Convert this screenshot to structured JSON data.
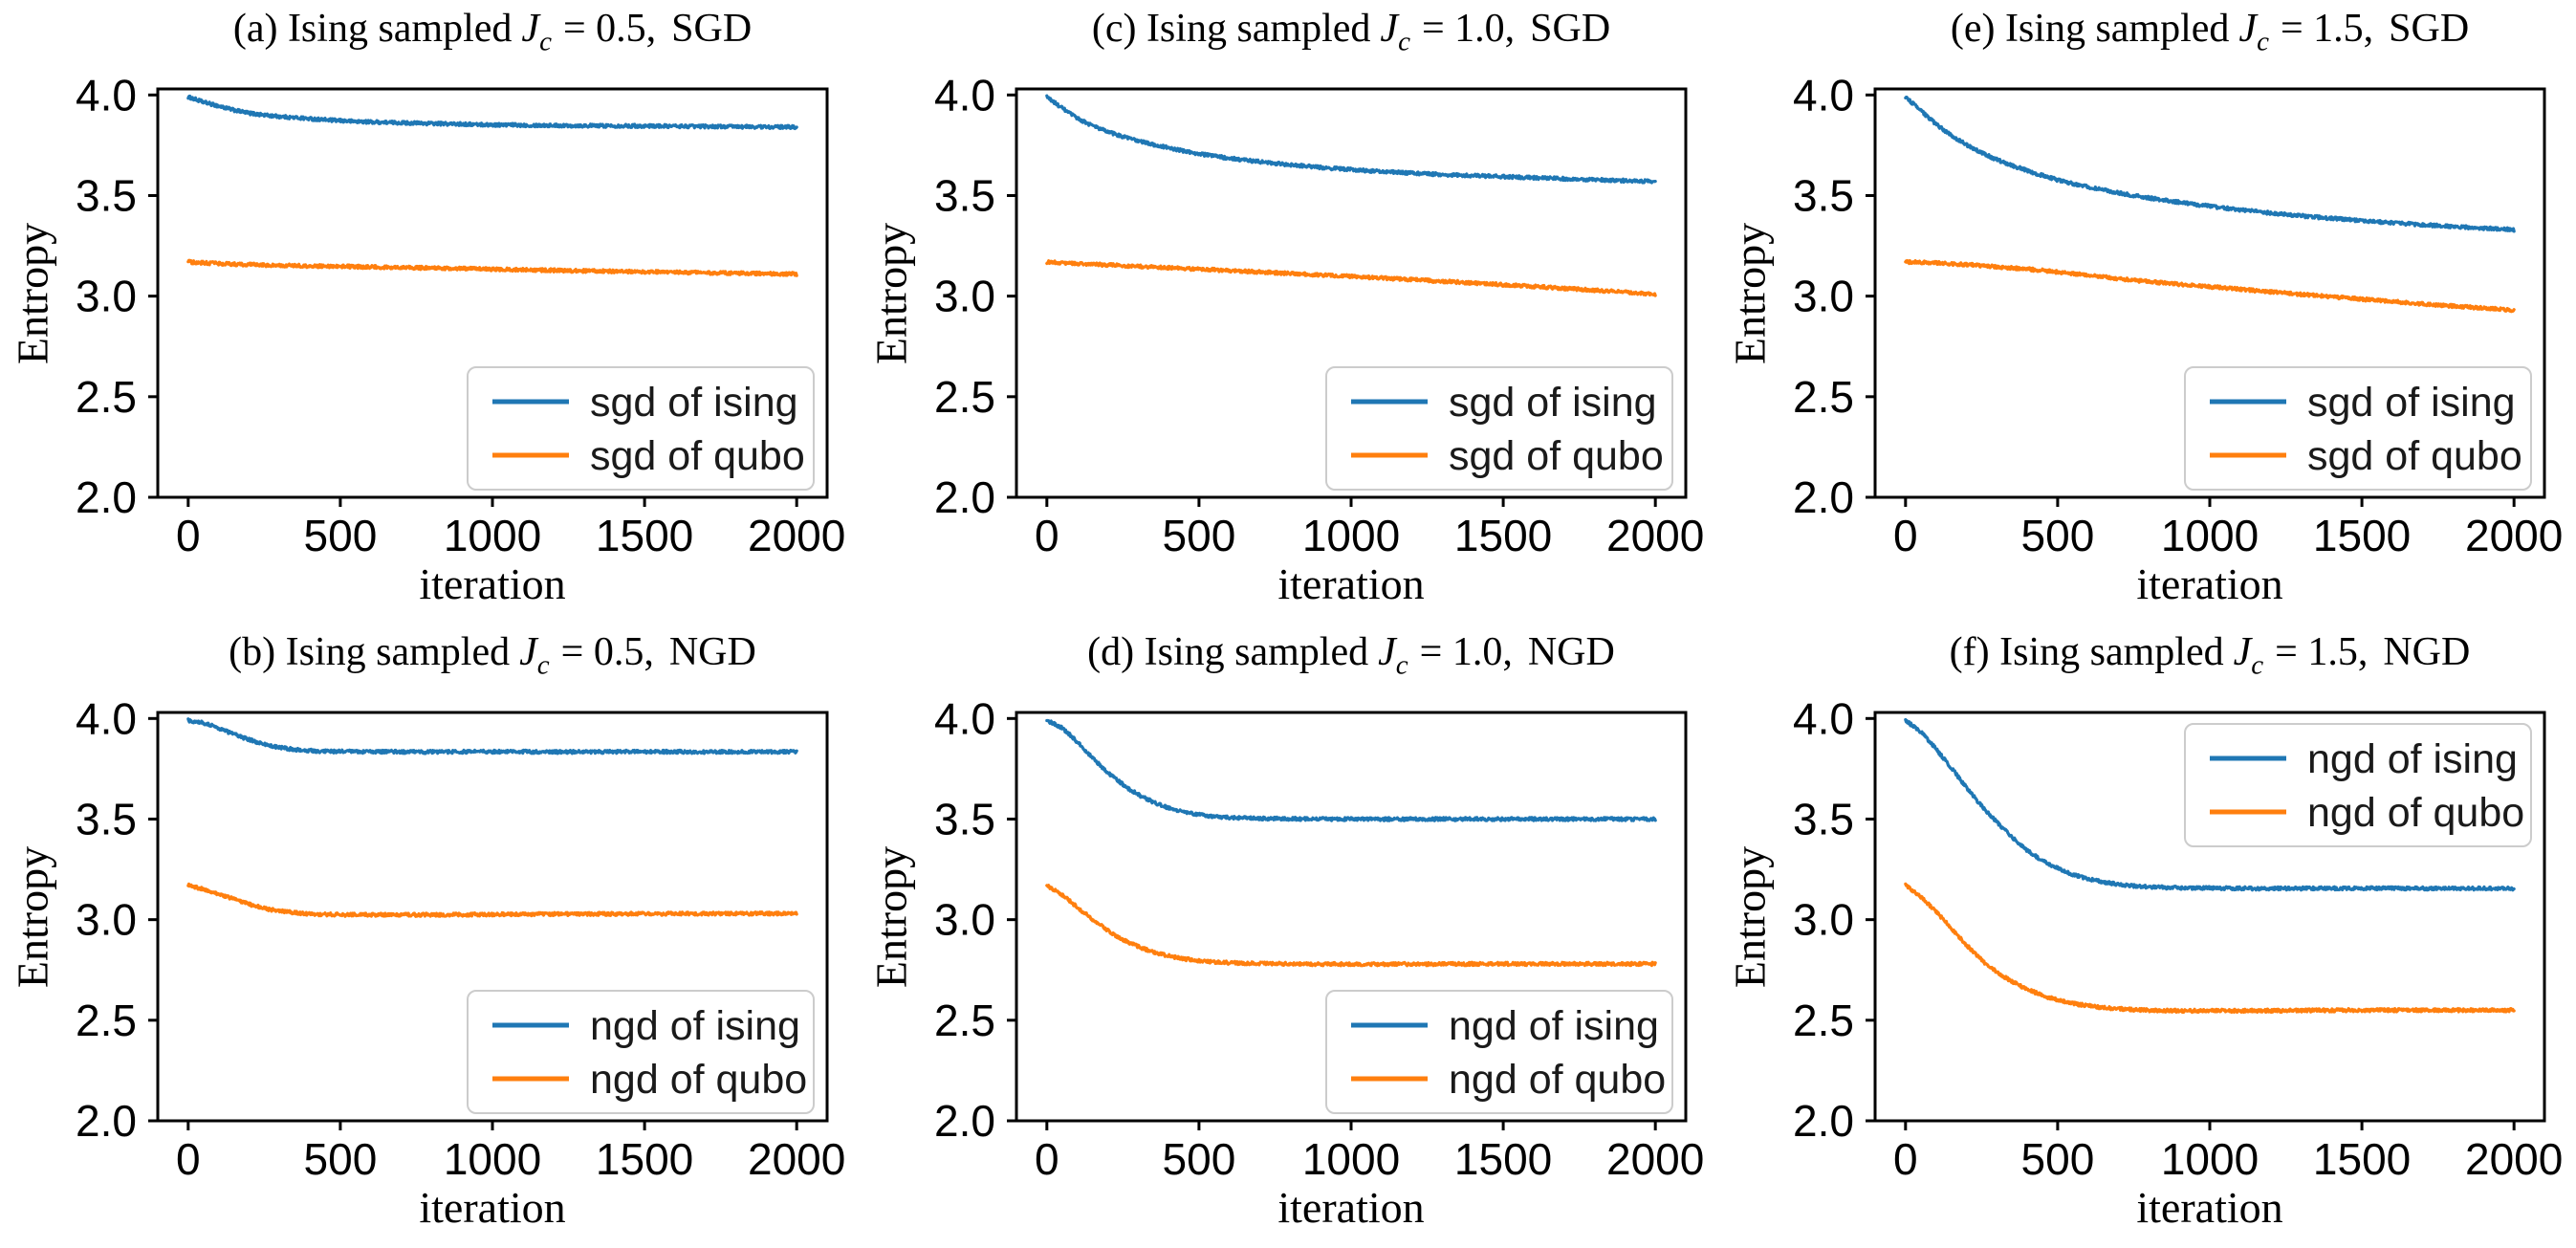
{
  "figure": {
    "background": "#ffffff",
    "ylabel": "Entropy",
    "xlabel": "iteration",
    "colors": {
      "ising_line": "#1f77b4",
      "qubo_line": "#ff7f0e",
      "legend_border": "#cccccc",
      "axis": "#000000"
    }
  },
  "chart_data": {
    "type": "line",
    "grid": false,
    "layout": "2 rows x 3 cols",
    "xlabel": "iteration",
    "ylabel": "Entropy",
    "xlim": [
      -100,
      2100
    ],
    "ylim": [
      2.0,
      4.03
    ],
    "xticks": [
      "0",
      "500",
      "1000",
      "1500",
      "2000"
    ],
    "xtick_values": [
      0,
      500,
      1000,
      1500,
      2000
    ],
    "yticks": [
      "2.0",
      "2.5",
      "3.0",
      "3.5",
      "4.0"
    ],
    "ytick_values": [
      2.0,
      2.5,
      3.0,
      3.5,
      4.0
    ],
    "noise_amplitude": 0.008,
    "x": [
      0,
      50,
      100,
      150,
      200,
      250,
      300,
      400,
      500,
      600,
      750,
      1000,
      1250,
      1500,
      1750,
      2000
    ],
    "panels": [
      {
        "id": "a",
        "title": {
          "prefix": "(a) Ising sampled",
          "var": "J",
          "sub": "c",
          "value": "= 0.5,",
          "method": "SGD"
        },
        "legend": {
          "position": "lower-right",
          "entries": [
            {
              "label": "sgd of ising",
              "color": "#1f77b4"
            },
            {
              "label": "sgd of qubo",
              "color": "#ff7f0e"
            }
          ]
        },
        "series": [
          {
            "name": "sgd of ising",
            "color": "#1f77b4",
            "y": [
              3.99,
              3.965,
              3.945,
              3.925,
              3.91,
              3.9,
              3.893,
              3.882,
              3.872,
              3.866,
              3.86,
              3.852,
              3.848,
              3.846,
              3.843,
              3.84
            ]
          },
          {
            "name": "sgd of qubo",
            "color": "#ff7f0e",
            "y": [
              3.17,
              3.166,
              3.162,
              3.159,
              3.157,
              3.155,
              3.153,
              3.15,
              3.148,
              3.145,
              3.141,
              3.134,
              3.127,
              3.121,
              3.115,
              3.11
            ]
          }
        ]
      },
      {
        "id": "c",
        "title": {
          "prefix": "(c) Ising sampled",
          "var": "J",
          "sub": "c",
          "value": "= 1.0,",
          "method": "SGD"
        },
        "legend": {
          "position": "lower-right",
          "entries": [
            {
              "label": "sgd of ising",
              "color": "#1f77b4"
            },
            {
              "label": "sgd of qubo",
              "color": "#ff7f0e"
            }
          ]
        },
        "series": [
          {
            "name": "sgd of ising",
            "color": "#1f77b4",
            "y": [
              3.99,
              3.935,
              3.885,
              3.848,
              3.818,
              3.793,
              3.772,
              3.737,
              3.708,
              3.686,
              3.66,
              3.629,
              3.608,
              3.594,
              3.581,
              3.57
            ]
          },
          {
            "name": "sgd of qubo",
            "color": "#ff7f0e",
            "y": [
              3.17,
              3.166,
              3.162,
              3.158,
              3.155,
              3.151,
              3.148,
              3.141,
              3.134,
              3.127,
              3.116,
              3.098,
              3.078,
              3.057,
              3.034,
              3.01
            ]
          }
        ]
      },
      {
        "id": "e",
        "title": {
          "prefix": "(e) Ising sampled",
          "var": "J",
          "sub": "c",
          "value": "= 1.5,",
          "method": "SGD"
        },
        "legend": {
          "position": "lower-right",
          "entries": [
            {
              "label": "sgd of ising",
              "color": "#1f77b4"
            },
            {
              "label": "sgd of qubo",
              "color": "#ff7f0e"
            }
          ]
        },
        "series": [
          {
            "name": "sgd of ising",
            "color": "#1f77b4",
            "y": [
              3.99,
              3.922,
              3.856,
              3.8,
              3.753,
              3.713,
              3.679,
              3.624,
              3.578,
              3.543,
              3.5,
              3.447,
              3.406,
              3.375,
              3.35,
              3.33
            ]
          },
          {
            "name": "sgd of qubo",
            "color": "#ff7f0e",
            "y": [
              3.17,
              3.168,
              3.165,
              3.161,
              3.157,
              3.152,
              3.146,
              3.134,
              3.12,
              3.104,
              3.079,
              3.047,
              3.015,
              2.985,
              2.956,
              2.93
            ]
          }
        ]
      },
      {
        "id": "b",
        "title": {
          "prefix": "(b) Ising sampled",
          "var": "J",
          "sub": "c",
          "value": "= 0.5,",
          "method": "NGD"
        },
        "legend": {
          "position": "lower-right",
          "entries": [
            {
              "label": "ngd of ising",
              "color": "#1f77b4"
            },
            {
              "label": "ngd of qubo",
              "color": "#ff7f0e"
            }
          ]
        },
        "series": [
          {
            "name": "ngd of ising",
            "color": "#1f77b4",
            "y": [
              3.99,
              3.978,
              3.952,
              3.922,
              3.895,
              3.872,
              3.856,
              3.84,
              3.836,
              3.835,
              3.834,
              3.835,
              3.834,
              3.835,
              3.834,
              3.835
            ]
          },
          {
            "name": "ngd of qubo",
            "color": "#ff7f0e",
            "y": [
              3.17,
              3.152,
              3.128,
              3.102,
              3.077,
              3.057,
              3.043,
              3.029,
              3.025,
              3.024,
              3.024,
              3.026,
              3.028,
              3.029,
              3.03,
              3.03
            ]
          }
        ]
      },
      {
        "id": "d",
        "title": {
          "prefix": "(d) Ising sampled",
          "var": "J",
          "sub": "c",
          "value": "= 1.0,",
          "method": "NGD"
        },
        "legend": {
          "position": "lower-right",
          "entries": [
            {
              "label": "ngd of ising",
              "color": "#1f77b4"
            },
            {
              "label": "ngd of qubo",
              "color": "#ff7f0e"
            }
          ]
        },
        "series": [
          {
            "name": "ngd of ising",
            "color": "#1f77b4",
            "y": [
              3.99,
              3.952,
              3.882,
              3.805,
              3.732,
              3.672,
              3.622,
              3.556,
              3.522,
              3.508,
              3.502,
              3.5,
              3.5,
              3.5,
              3.5,
              3.5
            ]
          },
          {
            "name": "ngd of qubo",
            "color": "#ff7f0e",
            "y": [
              3.17,
              3.122,
              3.062,
              3.002,
              2.947,
              2.902,
              2.866,
              2.82,
              2.796,
              2.786,
              2.781,
              2.779,
              2.779,
              2.78,
              2.78,
              2.78
            ]
          }
        ]
      },
      {
        "id": "f",
        "title": {
          "prefix": "(f) Ising sampled",
          "var": "J",
          "sub": "c",
          "value": "= 1.5,",
          "method": "NGD"
        },
        "legend": {
          "position": "upper-right",
          "entries": [
            {
              "label": "ngd of ising",
              "color": "#1f77b4"
            },
            {
              "label": "ngd of qubo",
              "color": "#ff7f0e"
            }
          ]
        },
        "series": [
          {
            "name": "ngd of ising",
            "color": "#1f77b4",
            "y": [
              3.99,
              3.932,
              3.848,
              3.755,
              3.658,
              3.566,
              3.485,
              3.345,
              3.255,
              3.203,
              3.168,
              3.157,
              3.155,
              3.156,
              3.155,
              3.155
            ]
          },
          {
            "name": "ngd of qubo",
            "color": "#ff7f0e",
            "y": [
              3.17,
              3.112,
              3.04,
              2.958,
              2.875,
              2.8,
              2.74,
              2.655,
              2.6,
              2.572,
              2.553,
              2.547,
              2.548,
              2.55,
              2.55,
              2.55
            ]
          }
        ]
      }
    ]
  }
}
